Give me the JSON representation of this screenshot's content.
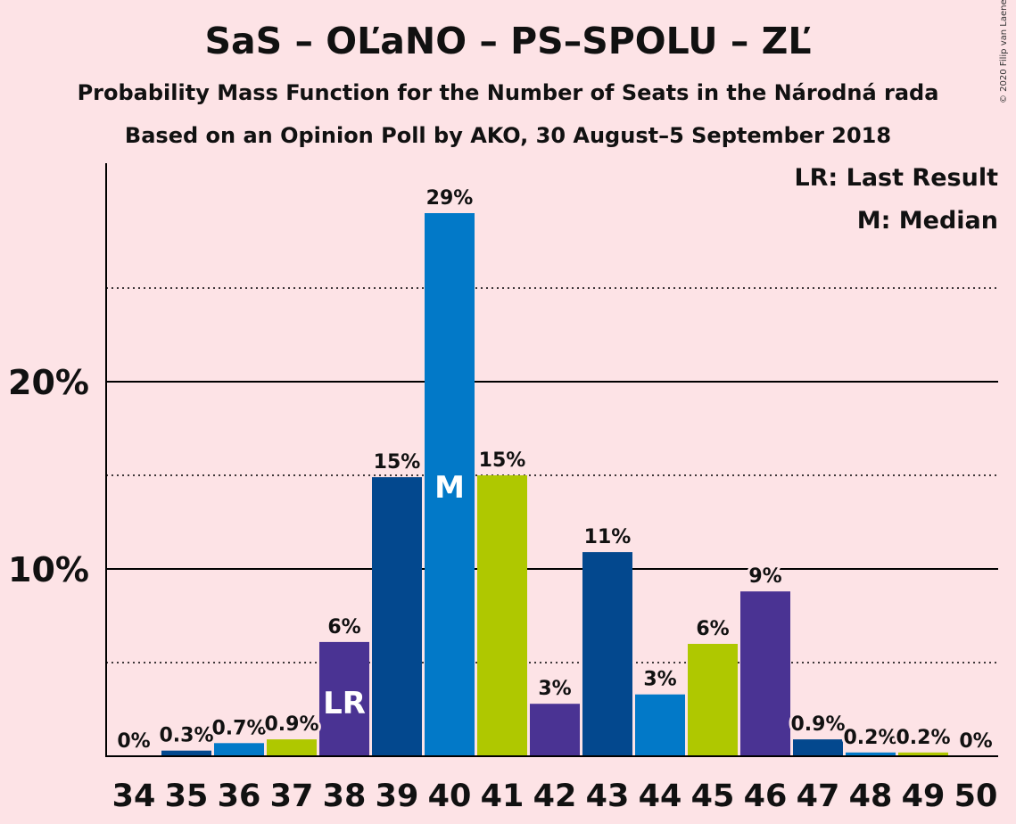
{
  "title": "SaS – OĽaNO – PS–SPOLU – ZĽ",
  "subtitle": "Probability Mass Function for the Number of Seats in the Národná rada",
  "subtitle2": "Based on an Opinion Poll by AKO, 30 August–5 September 2018",
  "legend": {
    "last_result": "LR: Last Result",
    "median": "M: Median"
  },
  "copyright": "© 2020 Filip van Laenen",
  "chart_data": {
    "type": "bar",
    "categories": [
      "34",
      "35",
      "36",
      "37",
      "38",
      "39",
      "40",
      "41",
      "42",
      "43",
      "44",
      "45",
      "46",
      "47",
      "48",
      "49",
      "50"
    ],
    "values": [
      0,
      0.3,
      0.7,
      0.9,
      6.1,
      14.9,
      29.0,
      15.0,
      2.8,
      10.9,
      3.3,
      6.0,
      8.8,
      0.9,
      0.2,
      0.2,
      0
    ],
    "data_labels": [
      "0%",
      "0.3%",
      "0.7%",
      "0.9%",
      "6%",
      "15%",
      "29%",
      "15%",
      "3%",
      "11%",
      "3%",
      "6%",
      "9%",
      "0.9%",
      "0.2%",
      "0.2%",
      "0%"
    ],
    "colors": [
      "#4a3393",
      "#03488e",
      "#0279c8",
      "#afc800",
      "#4a3393",
      "#03488e",
      "#0279c8",
      "#afc800",
      "#4a3393",
      "#03488e",
      "#0279c8",
      "#afc800",
      "#4a3393",
      "#03488e",
      "#0279c8",
      "#afc800",
      "#4a3393"
    ],
    "markers": {
      "38": "LR",
      "40": "M"
    },
    "ytick_labels": [
      "10%",
      "20%"
    ],
    "ytick_values": [
      10,
      20
    ],
    "dotted_grid_values": [
      5,
      15,
      25
    ],
    "ylim": [
      0,
      31.5
    ],
    "ylabel": "",
    "xlabel": ""
  }
}
